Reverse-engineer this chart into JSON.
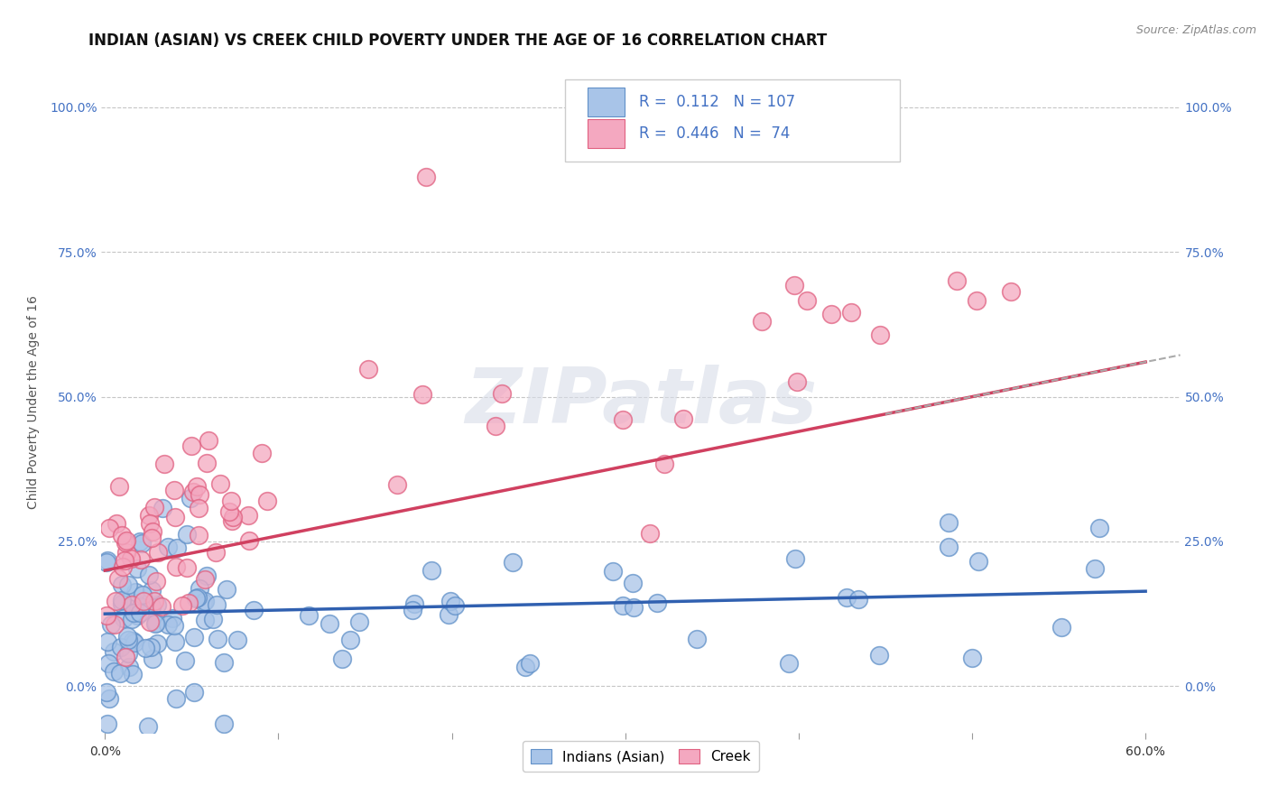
{
  "title": "INDIAN (ASIAN) VS CREEK CHILD POVERTY UNDER THE AGE OF 16 CORRELATION CHART",
  "source": "Source: ZipAtlas.com",
  "ylabel": "Child Poverty Under the Age of 16",
  "xlim": [
    -0.002,
    0.62
  ],
  "ylim": [
    -0.08,
    1.06
  ],
  "xticks": [
    0.0,
    0.1,
    0.2,
    0.3,
    0.4,
    0.5,
    0.6
  ],
  "xticklabels": [
    "0.0%",
    "",
    "",
    "",
    "",
    "",
    "60.0%"
  ],
  "yticks": [
    0.0,
    0.25,
    0.5,
    0.75,
    1.0
  ],
  "yticklabels": [
    "0.0%",
    "25.0%",
    "50.0%",
    "75.0%",
    "100.0%"
  ],
  "indian_color": "#a8c4e8",
  "creek_color": "#f4a8c0",
  "indian_edge_color": "#6090c8",
  "creek_edge_color": "#e06080",
  "indian_line_color": "#3060b0",
  "creek_line_color": "#d04060",
  "creek_line_dashed_color": "#b0b0b0",
  "indian_R": 0.112,
  "indian_N": 107,
  "creek_R": 0.446,
  "creek_N": 74,
  "legend_label_indian": "Indians (Asian)",
  "legend_label_creek": "Creek",
  "background_color": "#ffffff",
  "grid_color": "#b8b8b8",
  "title_fontsize": 12,
  "axis_label_fontsize": 10,
  "tick_fontsize": 10,
  "watermark": "ZIPatlas",
  "tick_color": "#4472c4"
}
